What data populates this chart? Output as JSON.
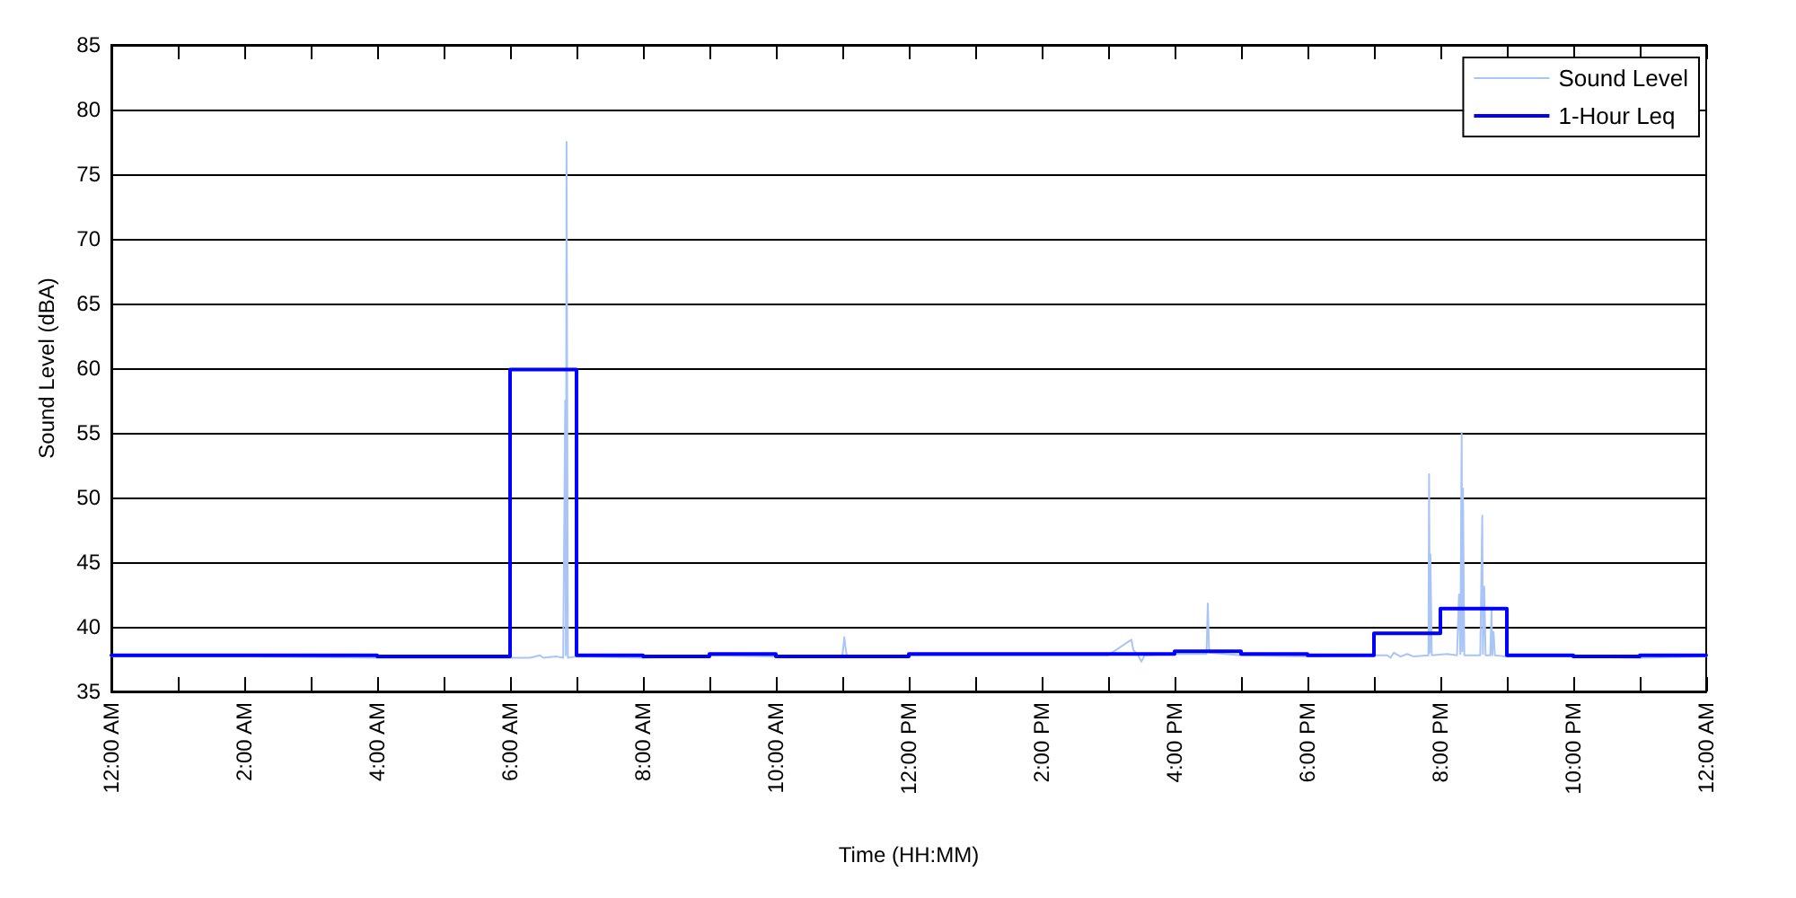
{
  "chart_data": {
    "type": "line",
    "xlabel": "Time (HH:MM)",
    "ylabel": "Sound Level (dBA)",
    "xlim": [
      0,
      24
    ],
    "xticks": [
      {
        "value": 0,
        "label": "12:00 AM"
      },
      {
        "value": 1,
        "label": null
      },
      {
        "value": 2,
        "label": "2:00 AM"
      },
      {
        "value": 3,
        "label": null
      },
      {
        "value": 4,
        "label": "4:00 AM"
      },
      {
        "value": 5,
        "label": null
      },
      {
        "value": 6,
        "label": "6:00 AM"
      },
      {
        "value": 7,
        "label": null
      },
      {
        "value": 8,
        "label": "8:00 AM"
      },
      {
        "value": 9,
        "label": null
      },
      {
        "value": 10,
        "label": "10:00 AM"
      },
      {
        "value": 11,
        "label": null
      },
      {
        "value": 12,
        "label": "12:00 PM"
      },
      {
        "value": 13,
        "label": null
      },
      {
        "value": 14,
        "label": "2:00 PM"
      },
      {
        "value": 15,
        "label": null
      },
      {
        "value": 16,
        "label": "4:00 PM"
      },
      {
        "value": 17,
        "label": null
      },
      {
        "value": 18,
        "label": "6:00 PM"
      },
      {
        "value": 19,
        "label": null
      },
      {
        "value": 20,
        "label": "8:00 PM"
      },
      {
        "value": 21,
        "label": null
      },
      {
        "value": 22,
        "label": "10:00 PM"
      },
      {
        "value": 23,
        "label": null
      },
      {
        "value": 24,
        "label": "12:00 AM"
      }
    ],
    "ylim": [
      35,
      85
    ],
    "yticks": [
      35,
      40,
      45,
      50,
      55,
      60,
      65,
      70,
      75,
      80,
      85
    ],
    "grid": "y",
    "legend": "top right",
    "marker": "none",
    "line_style": "solid",
    "series": [
      {
        "name": "Sound Level",
        "color": "#a9c4f7",
        "x": [
          0,
          2,
          4,
          6,
          6.3,
          6.45,
          6.5,
          6.7,
          6.8,
          6.83,
          6.84,
          6.85,
          6.87,
          7,
          8,
          9,
          10,
          11,
          11.03,
          11.05,
          11.07,
          12,
          14,
          15,
          15.35,
          15.38,
          15.45,
          15.5,
          15.55,
          16,
          16.48,
          16.5,
          16.52,
          17,
          18,
          19,
          19.2,
          19.25,
          19.3,
          19.4,
          19.5,
          19.6,
          19.82,
          19.83,
          19.84,
          19.85,
          19.87,
          20.1,
          20.25,
          20.28,
          20.3,
          20.32,
          20.33,
          20.34,
          20.36,
          20.6,
          20.63,
          20.64,
          20.66,
          20.68,
          20.75,
          20.77,
          20.78,
          20.8,
          20.82,
          21,
          22,
          23,
          24
        ],
        "values": [
          37.7,
          37.7,
          37.6,
          37.6,
          37.6,
          37.8,
          37.6,
          37.7,
          37.6,
          57.5,
          37.8,
          77.5,
          37.6,
          37.7,
          37.6,
          37.8,
          37.7,
          37.7,
          39.2,
          38.3,
          37.7,
          37.8,
          37.8,
          37.8,
          39.0,
          38.2,
          37.8,
          37.3,
          37.8,
          37.9,
          37.9,
          41.8,
          38.0,
          37.8,
          37.7,
          37.8,
          37.8,
          37.6,
          38.0,
          37.7,
          37.9,
          37.7,
          37.8,
          51.8,
          38.0,
          45.6,
          37.8,
          37.9,
          37.8,
          42.5,
          37.9,
          55.0,
          38.1,
          50.7,
          37.8,
          37.8,
          48.6,
          37.9,
          43.1,
          37.8,
          37.8,
          41.3,
          37.8,
          39.6,
          37.8,
          37.7,
          37.7,
          37.6,
          37.7
        ]
      },
      {
        "name": "1-Hour Leq",
        "type": "step",
        "color": "#0000ff",
        "x": [
          0,
          1,
          2,
          3,
          4,
          5,
          6,
          7,
          8,
          9,
          10,
          11,
          12,
          13,
          14,
          15,
          16,
          17,
          18,
          19,
          20,
          21,
          22,
          23,
          24
        ],
        "values": [
          37.8,
          37.8,
          37.8,
          37.8,
          37.7,
          37.7,
          59.9,
          37.8,
          37.7,
          37.9,
          37.7,
          37.7,
          37.9,
          37.9,
          37.9,
          37.9,
          38.1,
          37.9,
          37.8,
          39.5,
          41.4,
          37.8,
          37.7,
          37.8,
          37.8
        ]
      }
    ]
  }
}
